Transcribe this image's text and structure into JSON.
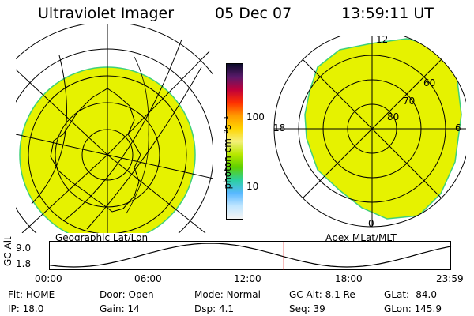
{
  "header": {
    "instrument": "Ultraviolet Imager",
    "date": "05 Dec 07",
    "time": "13:59:11 UT"
  },
  "colors": {
    "fill": "#e6f200",
    "fill_edge": "#3fd07a",
    "grid": "#000000",
    "time_marker": "#e00000"
  },
  "colorbar": {
    "label": "photon cm⁻²s⁻¹",
    "ticks": [
      "100",
      "10"
    ],
    "stops": [
      "#0b0b2a",
      "#5a1a6a",
      "#c0003a",
      "#ff3000",
      "#ff9a00",
      "#ffd400",
      "#f4f07a",
      "#b8e800",
      "#5fd000",
      "#2bd0a0",
      "#58b8ff",
      "#c0e6ff",
      "#f4f4f4"
    ]
  },
  "left_map": {
    "title": "Geographic Lat/Lon"
  },
  "right_map": {
    "title": "Apex MLat/MLT",
    "mlt_labels": {
      "top": "12",
      "left": "18",
      "right": "6",
      "bottom": "0"
    },
    "lat_labels": [
      "60",
      "70",
      "80"
    ]
  },
  "timeline": {
    "axis_label": "GC Alt",
    "y_ticks": [
      "9.0",
      "1.8"
    ],
    "x_ticks": [
      "00:00",
      "06:00",
      "12:00",
      "18:00",
      "23:59"
    ],
    "ymin": 1.8,
    "ymax": 9.0,
    "current_time_hours": 14.0
  },
  "info": {
    "row1": [
      {
        "label": "Flt:",
        "value": "HOME"
      },
      {
        "label": "Door:",
        "value": "Open"
      },
      {
        "label": "Mode:",
        "value": "Normal"
      },
      {
        "label": "GC Alt:",
        "value": "8.1 Re"
      },
      {
        "label": "GLat:",
        "value": "-84.0"
      }
    ],
    "row2": [
      {
        "label": "IP:",
        "value": "18.0"
      },
      {
        "label": "Gain:",
        "value": "14"
      },
      {
        "label": "Dsp:",
        "value": "4.1"
      },
      {
        "label": "Seq:",
        "value": "39"
      },
      {
        "label": "GLon:",
        "value": "145.9"
      }
    ]
  }
}
